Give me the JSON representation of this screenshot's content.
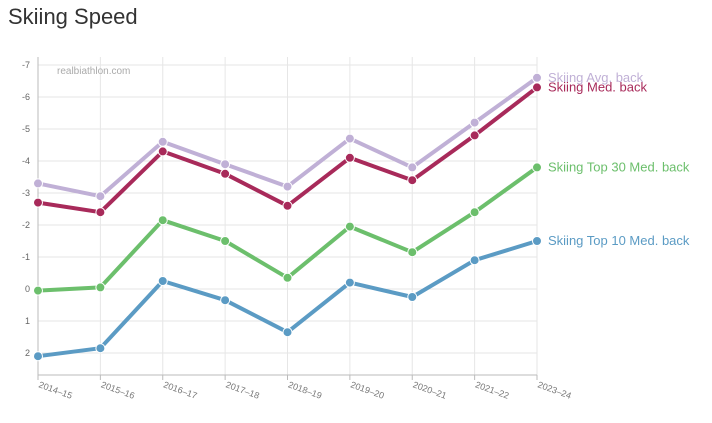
{
  "chart_data": {
    "type": "line",
    "title": "Skiing Speed",
    "watermark": "realbiathlon.com",
    "categories": [
      "2014–15",
      "2015–16",
      "2016–17",
      "2017–18",
      "2018–19",
      "2019–20",
      "2020–21",
      "2021–22",
      "2023–24"
    ],
    "y_ticks": [
      -7,
      -6,
      -5,
      -4,
      -3,
      -2,
      -1,
      0,
      1,
      2
    ],
    "ylim": [
      -7,
      2
    ],
    "y_inverted": true,
    "grid": true,
    "series": [
      {
        "name": "Skiing Avg. back",
        "color": "#c0b0d6",
        "values": [
          -3.3,
          -2.9,
          -4.6,
          -3.9,
          -3.2,
          -4.7,
          -3.8,
          -5.2,
          -6.6
        ]
      },
      {
        "name": "Skiing Med. back",
        "color": "#a82a5a",
        "values": [
          -2.7,
          -2.4,
          -4.3,
          -3.6,
          -2.6,
          -4.1,
          -3.4,
          -4.8,
          -6.3
        ]
      },
      {
        "name": "Skiing Top 30 Med. back",
        "color": "#6cbf6c",
        "values": [
          0.05,
          -0.05,
          -2.15,
          -1.5,
          -0.35,
          -1.95,
          -1.15,
          -2.4,
          -3.8
        ]
      },
      {
        "name": "Skiing Top 10 Med. back",
        "color": "#5b9bc4",
        "values": [
          2.1,
          1.85,
          -0.25,
          0.35,
          1.35,
          -0.2,
          0.25,
          -0.9,
          -1.5
        ]
      }
    ]
  }
}
